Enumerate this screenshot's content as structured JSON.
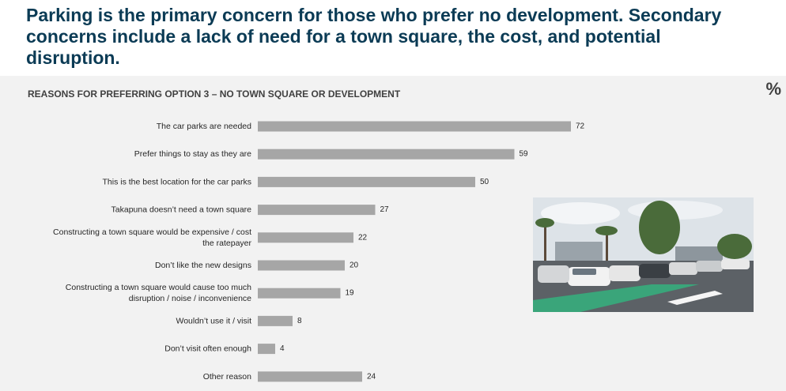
{
  "slide": {
    "title": "Parking is the primary concern for those who prefer no development. Secondary concerns include a lack of need for a town square, the cost, and potential disruption.",
    "unit_symbol": "%"
  },
  "chart_data": {
    "type": "bar",
    "orientation": "horizontal",
    "title": "REASONS FOR PREFERRING OPTION 3 – NO TOWN SQUARE OR DEVELOPMENT",
    "categories": [
      [
        "The car parks are needed"
      ],
      [
        "Prefer things to stay as they are"
      ],
      [
        "This is the best location for the car parks"
      ],
      [
        "Takapuna doesn’t need a town square"
      ],
      [
        "Constructing a town square would be expensive / cost",
        "the ratepayer"
      ],
      [
        "Don’t like the new designs"
      ],
      [
        "Constructing a town square would cause too much",
        "disruption / noise / inconvenience"
      ],
      [
        "Wouldn’t use it / visit"
      ],
      [
        "Don’t visit often enough"
      ],
      [
        "Other reason"
      ]
    ],
    "values": [
      72,
      59,
      50,
      27,
      22,
      20,
      19,
      8,
      4,
      24
    ],
    "xlim": [
      0,
      100
    ],
    "grid": false,
    "bar_color": "#a6a6a6"
  },
  "photo": {
    "sky": "#dde3e8",
    "asphalt": "#5c6166",
    "green_lane": "#3aa57a",
    "foliage": "#4a6b3a"
  }
}
